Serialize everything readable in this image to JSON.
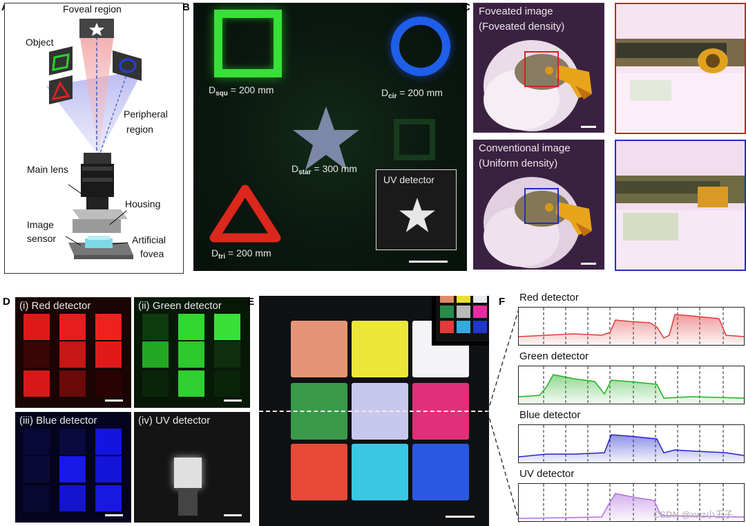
{
  "panel_letters": {
    "a": "A",
    "b": "B",
    "c": "C",
    "d": "D",
    "e": "E",
    "f": "F"
  },
  "panelA": {
    "foveal_region": "Foveal region",
    "object": "Object",
    "peripheral_region_l1": "Peripheral",
    "peripheral_region_l2": "region",
    "main_lens": "Main lens",
    "housing": "Housing",
    "image_sensor_l1": "Image",
    "image_sensor_l2": "sensor",
    "artificial_fovea_l1": "Artificial",
    "artificial_fovea_l2": "fovea"
  },
  "panelB": {
    "d_squ_main": "D",
    "d_squ_sub": "squ",
    "d_squ_val": " = 200 mm",
    "d_cir_main": "D",
    "d_cir_sub": "cir",
    "d_cir_val": " = 200 mm",
    "d_star_main": "D",
    "d_star_sub": "star",
    "d_star_val": " = 300 mm",
    "d_tri_main": "D",
    "d_tri_sub": "tri",
    "d_tri_val": " = 200 mm",
    "uv_detector": "UV detector"
  },
  "panelC": {
    "foveated_l1": "Foveated image",
    "foveated_l2": "(Foveated density)",
    "conventional_l1": "Conventional image",
    "conventional_l2": "(Uniform density)"
  },
  "panelD": {
    "red": "(i) Red detector",
    "green": "(ii) Green detector",
    "blue": "(iii) Blue detector",
    "uv": "(iv) UV detector"
  },
  "panelF": {
    "red": "Red detector",
    "green": "Green detector",
    "blue": "Blue detector",
    "uv": "UV detector",
    "watermark": "CSDN @xwz小王子"
  },
  "colors": {
    "red": "#e03a3a",
    "green": "#22b022",
    "blue": "#2222cc",
    "uv": "#b070e0",
    "c_red_frame": "#d42020",
    "c_blue_frame": "#2030c0"
  }
}
